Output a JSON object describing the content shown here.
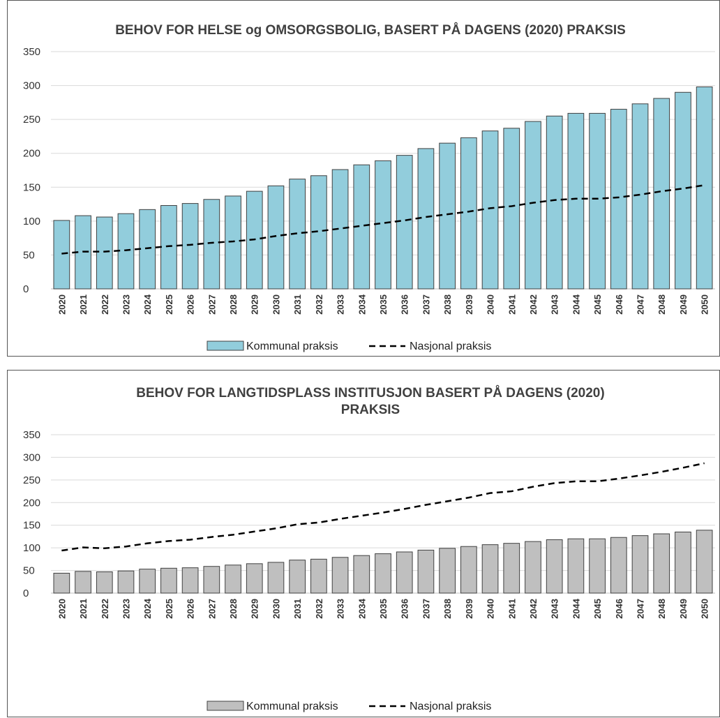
{
  "chart_data": [
    {
      "type": "bar",
      "title": "BEHOV FOR HELSE og OMSORGSBOLIG,  BASERT PÅ DAGENS (2020) PRAKSIS",
      "title_lines": [
        "BEHOV FOR HELSE og OMSORGSBOLIG,  BASERT PÅ DAGENS (2020) PRAKSIS"
      ],
      "xlabel": "",
      "ylabel": "",
      "ylim": [
        0,
        350
      ],
      "yticks": [
        0,
        50,
        100,
        150,
        200,
        250,
        300,
        350
      ],
      "grid": true,
      "legend": "bottom",
      "categories": [
        "2020",
        "2021",
        "2022",
        "2023",
        "2024",
        "2025",
        "2026",
        "2027",
        "2028",
        "2029",
        "2030",
        "2031",
        "2032",
        "2033",
        "2034",
        "2035",
        "2036",
        "2037",
        "2038",
        "2039",
        "2040",
        "2041",
        "2042",
        "2043",
        "2044",
        "2045",
        "2046",
        "2047",
        "2048",
        "2049",
        "2050"
      ],
      "series": [
        {
          "name": "Kommunal praksis",
          "kind": "bar",
          "color": "#92cddc",
          "values": [
            101,
            108,
            106,
            111,
            117,
            123,
            126,
            132,
            137,
            144,
            152,
            162,
            167,
            176,
            183,
            189,
            197,
            207,
            215,
            223,
            233,
            237,
            247,
            255,
            259,
            259,
            265,
            273,
            281,
            290,
            298
          ]
        },
        {
          "name": "Nasjonal praksis",
          "kind": "dashed-line",
          "color": "#000000",
          "values": [
            52,
            55,
            55,
            57,
            60,
            63,
            65,
            68,
            70,
            73,
            78,
            82,
            85,
            89,
            93,
            97,
            101,
            106,
            110,
            114,
            119,
            122,
            127,
            131,
            133,
            133,
            135,
            139,
            144,
            148,
            153
          ]
        }
      ]
    },
    {
      "type": "bar",
      "title": "BEHOV FOR LANGTIDSPLASS INSTITUSJON BASERT PÅ DAGENS (2020) PRAKSIS",
      "title_lines": [
        "BEHOV FOR LANGTIDSPLASS INSTITUSJON BASERT PÅ DAGENS (2020)",
        "PRAKSIS"
      ],
      "xlabel": "",
      "ylabel": "",
      "ylim": [
        0,
        350
      ],
      "yticks": [
        0,
        50,
        100,
        150,
        200,
        250,
        300,
        350
      ],
      "grid": true,
      "legend": "bottom",
      "categories": [
        "2020",
        "2021",
        "2022",
        "2023",
        "2024",
        "2025",
        "2026",
        "2027",
        "2028",
        "2029",
        "2030",
        "2031",
        "2032",
        "2033",
        "2034",
        "2035",
        "2036",
        "2037",
        "2038",
        "2039",
        "2040",
        "2041",
        "2042",
        "2043",
        "2044",
        "2045",
        "2046",
        "2047",
        "2048",
        "2049",
        "2050"
      ],
      "series": [
        {
          "name": "Kommunal praksis",
          "kind": "bar",
          "color": "#bfbfbf",
          "values": [
            44,
            48,
            47,
            49,
            53,
            55,
            56,
            59,
            62,
            65,
            68,
            73,
            75,
            79,
            83,
            87,
            91,
            95,
            99,
            103,
            107,
            110,
            114,
            118,
            120,
            120,
            123,
            127,
            131,
            135,
            139
          ]
        },
        {
          "name": "Nasjonal praksis",
          "kind": "dashed-line",
          "color": "#000000",
          "values": [
            94,
            101,
            99,
            103,
            110,
            115,
            118,
            124,
            129,
            136,
            143,
            152,
            156,
            164,
            171,
            178,
            186,
            195,
            203,
            211,
            221,
            225,
            235,
            243,
            247,
            247,
            253,
            260,
            268,
            277,
            287
          ]
        }
      ]
    }
  ]
}
